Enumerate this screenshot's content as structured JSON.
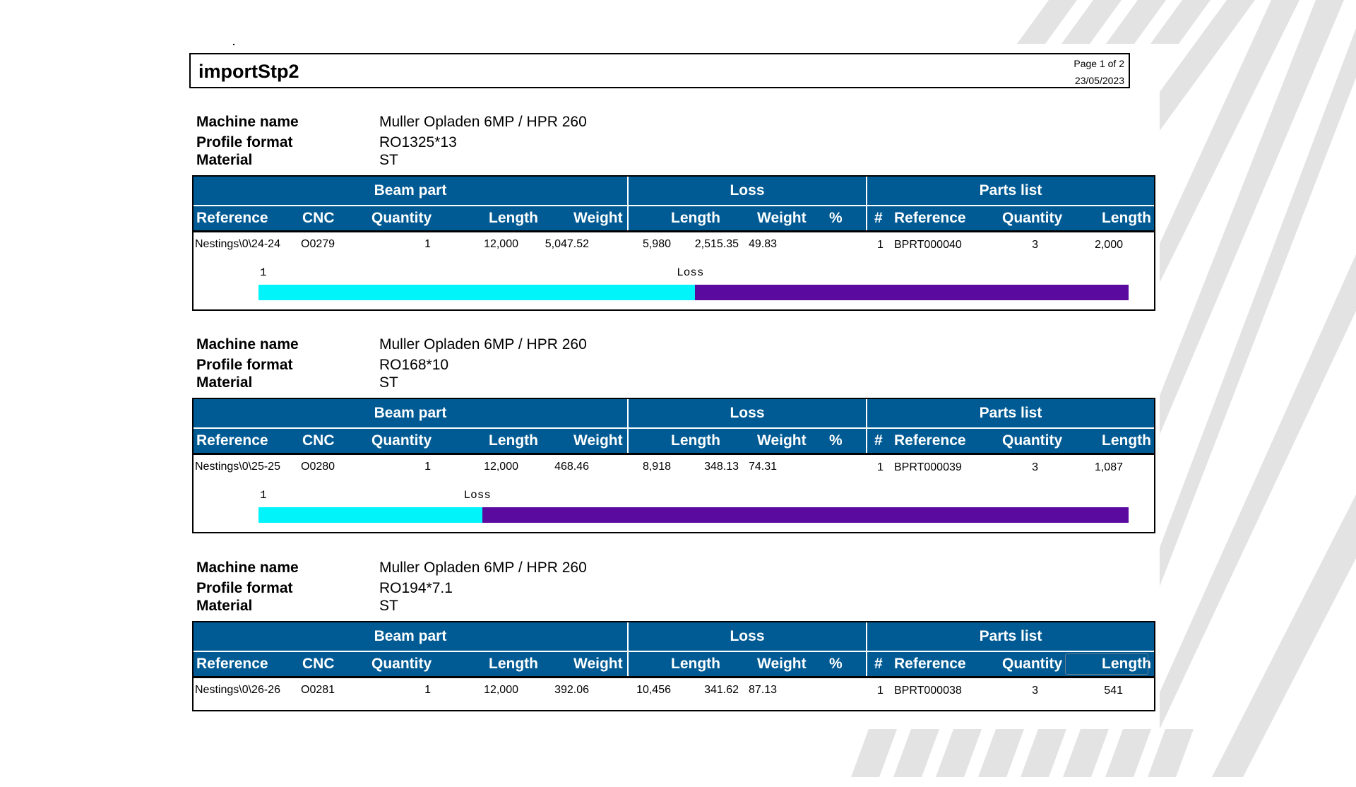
{
  "document": {
    "title": "importStp2",
    "page_info": "Page 1 of 2",
    "date": "23/05/2023"
  },
  "labels": {
    "machine_name": "Machine name",
    "profile_format": "Profile format",
    "material": "Material",
    "group_beam": "Beam part",
    "group_loss": "Loss",
    "group_parts": "Parts list",
    "col_reference": "Reference",
    "col_cnc": "CNC",
    "col_quantity": "Quantity",
    "col_length": "Length",
    "col_weight": "Weight",
    "col_loss_length": "Length",
    "col_loss_weight": "Weight",
    "col_percent": "%",
    "col_hash": "#",
    "col_part_reference": "Reference",
    "col_part_quantity": "Quantity",
    "col_part_length": "Length",
    "bar_loss_label": "Loss"
  },
  "sections": [
    {
      "machine_name": "Muller Opladen 6MP / HPR 260",
      "profile_format": "RO1325*13",
      "material": "ST",
      "row": {
        "reference": "Nestings\\0\\24-24",
        "cnc": "O0279",
        "quantity": "1",
        "length": "12,000",
        "weight": "5,047.52",
        "loss_length": "5,980",
        "loss_weight": "2,515.35",
        "loss_percent": "49.83",
        "part_index": "1",
        "part_reference": "BPRT000040",
        "part_quantity": "3",
        "part_length": "2,000"
      },
      "bar": {
        "part_label": "1",
        "loss_percent": 49.83
      }
    },
    {
      "machine_name": "Muller Opladen 6MP / HPR 260",
      "profile_format": "RO168*10",
      "material": "ST",
      "row": {
        "reference": "Nestings\\0\\25-25",
        "cnc": "O0280",
        "quantity": "1",
        "length": "12,000",
        "weight": "468.46",
        "loss_length": "8,918",
        "loss_weight": "348.13",
        "loss_percent": "74.31",
        "part_index": "1",
        "part_reference": "BPRT000039",
        "part_quantity": "3",
        "part_length": "1,087"
      },
      "bar": {
        "part_label": "1",
        "loss_percent": 74.31
      }
    },
    {
      "machine_name": "Muller Opladen 6MP / HPR 260",
      "profile_format": "RO194*7.1",
      "material": "ST",
      "row": {
        "reference": "Nestings\\0\\26-26",
        "cnc": "O0281",
        "quantity": "1",
        "length": "12,000",
        "weight": "392.06",
        "loss_length": "10,456",
        "loss_weight": "341.62",
        "loss_percent": "87.13",
        "part_index": "1",
        "part_reference": "BPRT000038",
        "part_quantity": "3",
        "part_length": "541"
      }
    }
  ]
}
